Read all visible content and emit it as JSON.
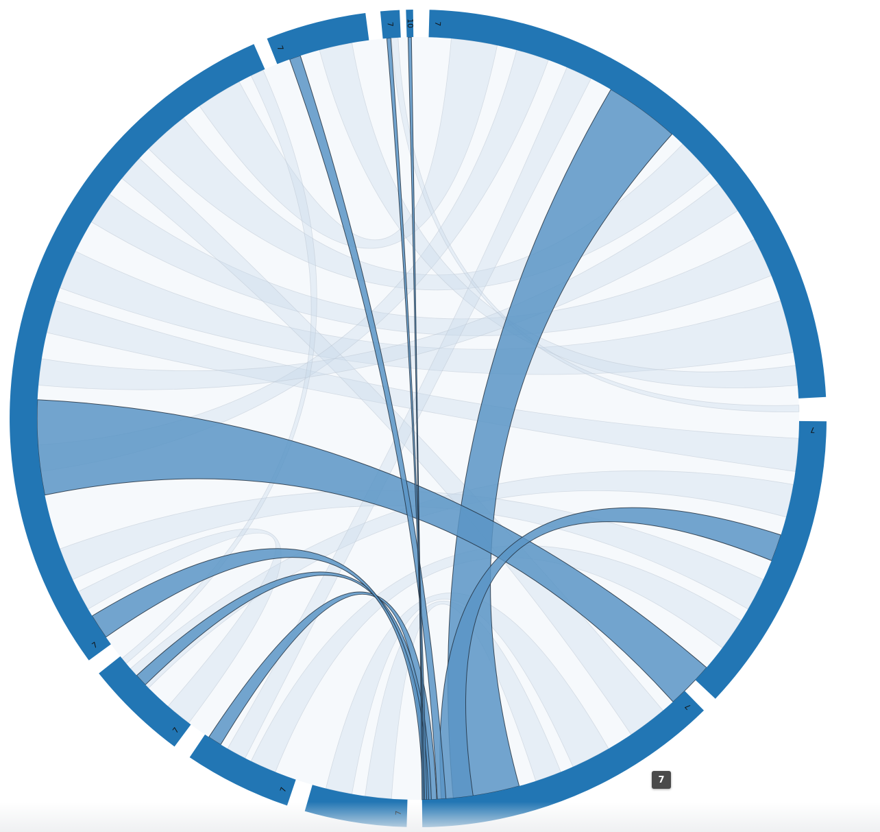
{
  "diagram": {
    "type": "chord",
    "colors": {
      "arc": "#2276b4",
      "chord_highlight": "#5b95c6",
      "chord_faded": "#c9d9ea",
      "chord_stroke": "#1b2836",
      "tooltip_bg": "#4a4a4a"
    },
    "groups": [
      {
        "id": "g1",
        "value_label": "7",
        "start_deg": 1.6,
        "end_deg": 87.0
      },
      {
        "id": "g2",
        "value_label": "7",
        "start_deg": 90.4,
        "end_deg": 133.3
      },
      {
        "id": "g3",
        "value_label": "7",
        "start_deg": 135.6,
        "end_deg": 179.4
      },
      {
        "id": "g4",
        "value_label": "7",
        "start_deg": 181.6,
        "end_deg": 196.1
      },
      {
        "id": "g5",
        "value_label": "7",
        "start_deg": 198.7,
        "end_deg": 214.0
      },
      {
        "id": "g6",
        "value_label": "7",
        "start_deg": 216.6,
        "end_deg": 231.4
      },
      {
        "id": "g7",
        "value_label": "7",
        "start_deg": 233.7,
        "end_deg": 336.3
      },
      {
        "id": "g8",
        "value_label": "7",
        "start_deg": 338.3,
        "end_deg": 352.6
      },
      {
        "id": "g9",
        "value_label": "7",
        "start_deg": 354.7,
        "end_deg": 357.4
      },
      {
        "id": "g10",
        "value_label": "10",
        "start_deg": 358.3,
        "end_deg": 359.3
      }
    ],
    "highlighted_chords": [
      {
        "a": [
          30.4,
          41.8
        ],
        "b": [
          164.6,
          174.7
        ]
      },
      {
        "a": [
          258.4,
          272.8
        ],
        "b": [
          130.8,
          138.0
        ]
      },
      {
        "a": [
          107.8,
          111.9
        ],
        "b": [
          171.7,
          176.5
        ]
      },
      {
        "a": [
          211.2,
          213.3
        ],
        "b": [
          177.2,
          178.9
        ]
      },
      {
        "a": [
          225.7,
          227.6
        ],
        "b": [
          178.0,
          179.1
        ]
      },
      {
        "a": [
          235.0,
          238.8
        ],
        "b": [
          178.4,
          179.3
        ]
      },
      {
        "a": [
          340.3,
          342.0
        ],
        "b": [
          175.8,
          177.1
        ]
      },
      {
        "a": [
          355.3,
          355.9
        ],
        "b": [
          178.7,
          179.0
        ]
      },
      {
        "a": [
          358.5,
          359.0
        ],
        "b": [
          179.2,
          179.4
        ]
      }
    ],
    "faded_chords": [
      {
        "a": [
          62.0,
          68.0
        ],
        "b": [
          301.0,
          306.0
        ]
      },
      {
        "a": [
          72.0,
          80.0
        ],
        "b": [
          290.0,
          296.0
        ]
      },
      {
        "a": [
          44.0,
          50.0
        ],
        "b": [
          315.0,
          322.0
        ]
      },
      {
        "a": [
          93.0,
          98.0
        ],
        "b": [
          283.0,
          288.0
        ]
      },
      {
        "a": [
          100.0,
          105.0
        ],
        "b": [
          225.0,
          229.0
        ]
      },
      {
        "a": [
          115.0,
          120.0
        ],
        "b": [
          245.0,
          250.0
        ]
      },
      {
        "a": [
          122.0,
          127.0
        ],
        "b": [
          202.0,
          206.0
        ]
      },
      {
        "a": [
          140.0,
          146.0
        ],
        "b": [
          309.0,
          313.0
        ]
      },
      {
        "a": [
          150.0,
          156.0
        ],
        "b": [
          190.0,
          194.0
        ]
      },
      {
        "a": [
          5.0,
          12.0
        ],
        "b": [
          325.0,
          332.0
        ]
      },
      {
        "a": [
          15.0,
          20.0
        ],
        "b": [
          262.0,
          266.0
        ]
      },
      {
        "a": [
          82.0,
          85.0
        ],
        "b": [
          345.0,
          350.0
        ]
      },
      {
        "a": [
          52.0,
          57.0
        ],
        "b": [
          275.0,
          279.0
        ]
      },
      {
        "a": [
          23.0,
          27.0
        ],
        "b": [
          207.0,
          210.0
        ]
      },
      {
        "a": [
          158.0,
          162.0
        ],
        "b": [
          184.0,
          188.0
        ]
      },
      {
        "a": [
          240.0,
          243.0
        ],
        "b": [
          217.0,
          221.0
        ]
      },
      {
        "a": [
          334.0,
          336.0
        ],
        "b": [
          230.0,
          231.0
        ]
      },
      {
        "a": [
          88.0,
          89.0
        ],
        "b": [
          356.0,
          357.0
        ]
      }
    ]
  },
  "tooltip": {
    "value": "7"
  }
}
